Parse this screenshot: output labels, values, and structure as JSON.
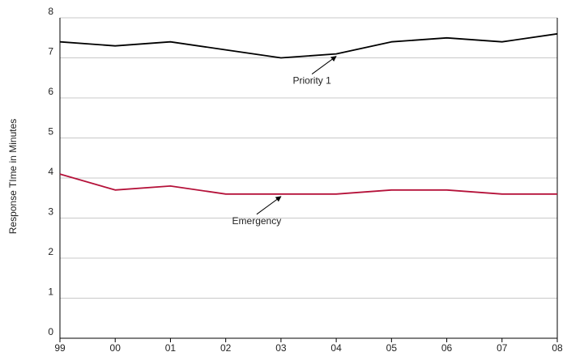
{
  "chart_data": {
    "type": "line",
    "ylabel": "Response TIme in Minutes",
    "xlabel": "",
    "ylim": [
      0,
      8
    ],
    "y_ticks": [
      0,
      1,
      2,
      3,
      4,
      5,
      6,
      7,
      8
    ],
    "categories": [
      "99",
      "00",
      "01",
      "02",
      "03",
      "04",
      "05",
      "06",
      "07",
      "08"
    ],
    "grid": "horizontal",
    "series": [
      {
        "name": "Priority 1",
        "color": "#000000",
        "values": [
          7.4,
          7.3,
          7.4,
          7.2,
          7.0,
          7.1,
          7.4,
          7.5,
          7.4,
          7.6
        ],
        "annotation": {
          "text": "Priority 1",
          "points_to_category": "04"
        }
      },
      {
        "name": "Emergency",
        "color": "#b5123a",
        "values": [
          4.1,
          3.7,
          3.8,
          3.6,
          3.6,
          3.6,
          3.7,
          3.7,
          3.6,
          3.6
        ],
        "annotation": {
          "text": "Emergency",
          "points_to_category": "03"
        }
      }
    ]
  }
}
